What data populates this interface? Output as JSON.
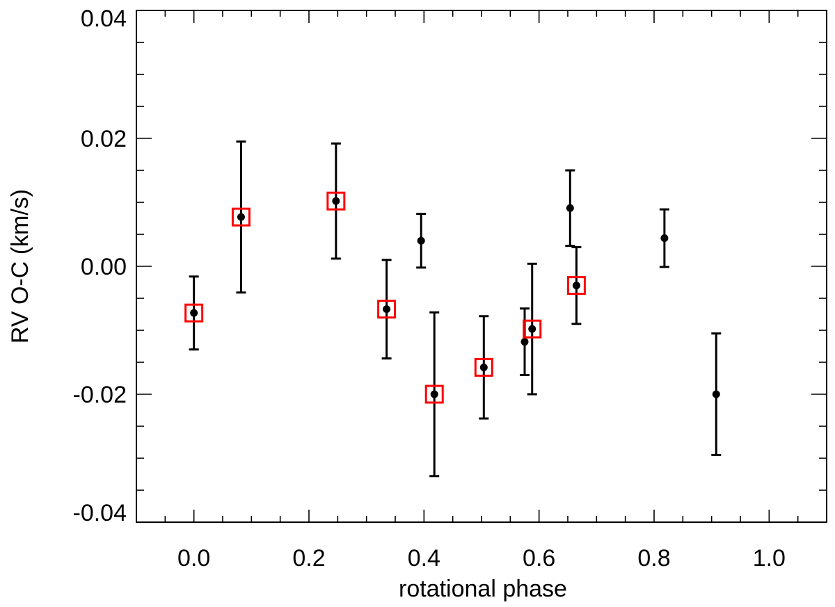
{
  "chart_data": {
    "type": "scatter",
    "title": "",
    "xlabel": "rotational phase",
    "ylabel": "RV O-C (km/s)",
    "xlim": [
      -0.1,
      1.1
    ],
    "ylim": [
      -0.04,
      0.04
    ],
    "x_ticks": [
      {
        "value": 0.0,
        "label": "0.0"
      },
      {
        "value": 0.2,
        "label": "0.2"
      },
      {
        "value": 0.4,
        "label": "0.4"
      },
      {
        "value": 0.6,
        "label": "0.6"
      },
      {
        "value": 0.8,
        "label": "0.8"
      },
      {
        "value": 1.0,
        "label": "1.0"
      }
    ],
    "y_ticks": [
      {
        "value": -0.04,
        "label": "-0.04"
      },
      {
        "value": -0.02,
        "label": "-0.02"
      },
      {
        "value": 0.0,
        "label": "0.00"
      },
      {
        "value": 0.02,
        "label": "0.02"
      },
      {
        "value": 0.04,
        "label": "0.04"
      }
    ],
    "x_minor_step": 0.05,
    "y_minor_step": 0.005,
    "grid": false,
    "colors": {
      "points": "#000000",
      "highlight": "#ff0000",
      "axis": "#000000"
    },
    "points": [
      {
        "x": 0.0,
        "y": -0.0073,
        "err": 0.0057,
        "highlighted": true
      },
      {
        "x": 0.082,
        "y": 0.0077,
        "err": 0.0118,
        "highlighted": true
      },
      {
        "x": 0.247,
        "y": 0.0102,
        "err": 0.009,
        "highlighted": true
      },
      {
        "x": 0.335,
        "y": -0.0067,
        "err": 0.0077,
        "highlighted": true
      },
      {
        "x": 0.395,
        "y": 0.004,
        "err": 0.0042,
        "highlighted": false
      },
      {
        "x": 0.418,
        "y": -0.02,
        "err": 0.0128,
        "highlighted": true
      },
      {
        "x": 0.504,
        "y": -0.0158,
        "err": 0.008,
        "highlighted": true
      },
      {
        "x": 0.575,
        "y": -0.0118,
        "err": 0.0052,
        "highlighted": false
      },
      {
        "x": 0.588,
        "y": -0.0098,
        "err": 0.0102,
        "highlighted": true
      },
      {
        "x": 0.654,
        "y": 0.0091,
        "err": 0.0059,
        "highlighted": false
      },
      {
        "x": 0.665,
        "y": -0.003,
        "err": 0.006,
        "highlighted": true
      },
      {
        "x": 0.818,
        "y": 0.0044,
        "err": 0.0045,
        "highlighted": false
      },
      {
        "x": 0.908,
        "y": -0.02,
        "err": 0.0095,
        "highlighted": false
      }
    ]
  }
}
